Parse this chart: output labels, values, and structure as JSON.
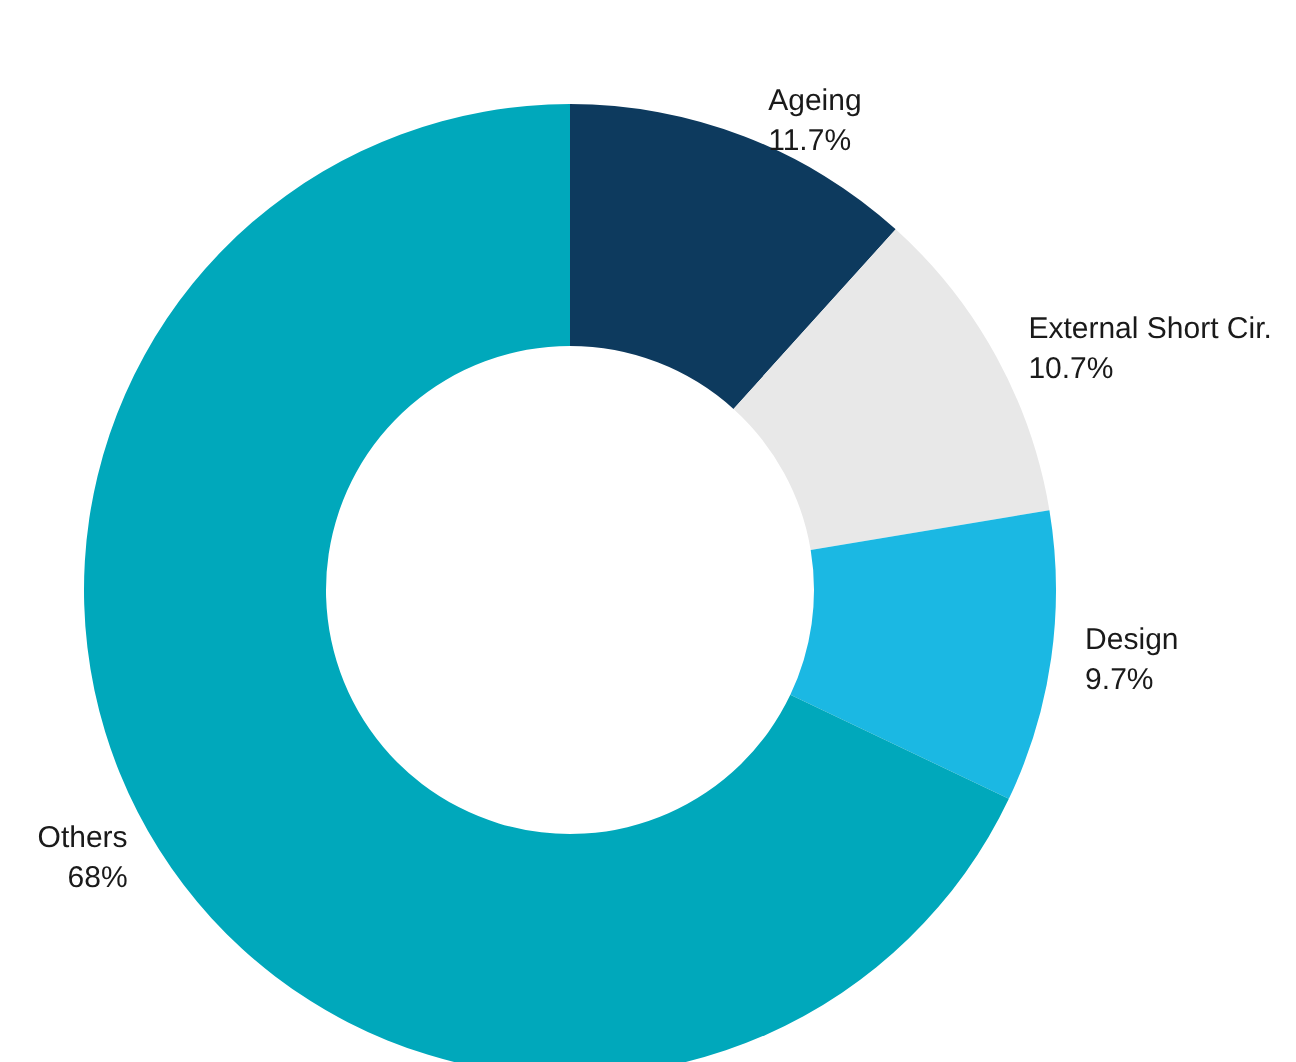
{
  "chart_data": {
    "type": "donut",
    "categories": [
      "Ageing",
      "External Short Cir.",
      "Design",
      "Others"
    ],
    "values": [
      11.7,
      10.7,
      9.7,
      68
    ],
    "value_labels": [
      "11.7%",
      "10.7%",
      "9.7%",
      "68%"
    ],
    "colors": [
      "#0d3a5e",
      "#e8e8e8",
      "#1bb8e3",
      "#00a8bb"
    ],
    "legend": false
  }
}
